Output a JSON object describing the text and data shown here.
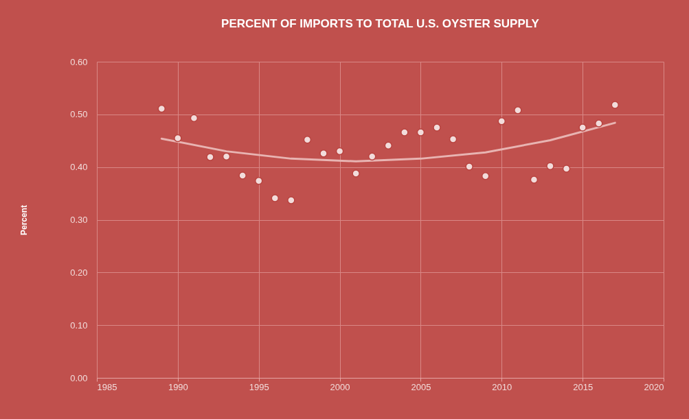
{
  "chart_data": {
    "type": "scatter",
    "title": "PERCENT OF IMPORTS TO TOTAL U.S. OYSTER SUPPLY",
    "ylabel": "Percent",
    "x": [
      1989,
      1990,
      1991,
      1992,
      1993,
      1994,
      1995,
      1996,
      1997,
      1998,
      1999,
      2000,
      2001,
      2002,
      2003,
      2004,
      2005,
      2006,
      2007,
      2008,
      2009,
      2010,
      2011,
      2012,
      2013,
      2014,
      2015,
      2016,
      2017
    ],
    "series": [
      {
        "color": "#f2dcdb",
        "marker": "circle",
        "values": [
          0.511,
          0.455,
          0.493,
          0.419,
          0.42,
          0.384,
          0.374,
          0.341,
          0.337,
          0.452,
          0.426,
          0.43,
          0.388,
          0.42,
          0.441,
          0.466,
          0.466,
          0.475,
          0.453,
          0.401,
          0.383,
          0.487,
          0.508,
          0.376,
          0.402,
          0.397,
          0.475,
          0.483,
          0.518
        ]
      },
      {
        "type": "line",
        "marker": "none",
        "color": "#e8b4b2",
        "x": [
          1989,
          1993,
          1997,
          2001,
          2005,
          2009,
          2013,
          2017
        ],
        "values": [
          0.454,
          0.43,
          0.416,
          0.411,
          0.416,
          0.428,
          0.451,
          0.484
        ]
      }
    ],
    "xlim": [
      1985,
      2020
    ],
    "xticks": [
      1985,
      1990,
      1995,
      2000,
      2005,
      2010,
      2015,
      2020
    ],
    "ylim": [
      0,
      0.6
    ],
    "yticks": [
      {
        "value": 0,
        "label": "0.00"
      },
      {
        "value": 0.1,
        "label": "0.10"
      },
      {
        "value": 0.2,
        "label": "0.20"
      },
      {
        "value": 0.3,
        "label": "0.30"
      },
      {
        "value": 0.4,
        "label": "0.40"
      },
      {
        "value": 0.5,
        "label": "0.50"
      },
      {
        "value": 0.6,
        "label": "0.60"
      }
    ],
    "grid": true,
    "line_style": "solid"
  }
}
